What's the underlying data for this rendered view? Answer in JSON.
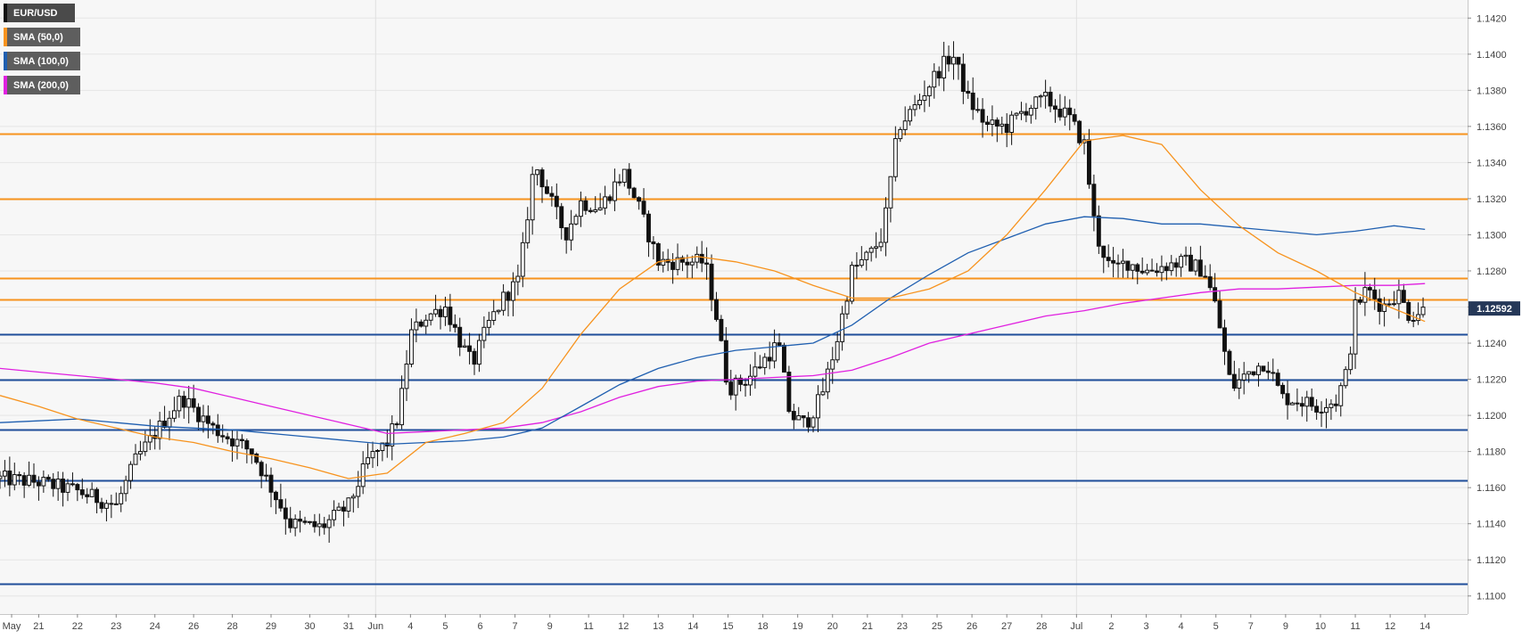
{
  "chart_data": {
    "type": "candlestick",
    "symbol": "EUR/USD",
    "legend": [
      {
        "label": "EUR/USD",
        "color": "#111111"
      },
      {
        "label": "SMA (50,0)",
        "color": "#f7931e"
      },
      {
        "label": "SMA (100,0)",
        "color": "#1f5fb0"
      },
      {
        "label": "SMA (200,0)",
        "color": "#e020e0"
      }
    ],
    "ylim": [
      1.109,
      1.143
    ],
    "y_ticks": [
      "1.1100",
      "1.1120",
      "1.1140",
      "1.1160",
      "1.1180",
      "1.1200",
      "1.1220",
      "1.1240",
      "1.1260",
      "1.1280",
      "1.1300",
      "1.1320",
      "1.1340",
      "1.1360",
      "1.1380",
      "1.1400",
      "1.1420"
    ],
    "x_ticks": [
      {
        "label": "May",
        "x": 0.3
      },
      {
        "label": "21",
        "x": 1.0
      },
      {
        "label": "22",
        "x": 2.0
      },
      {
        "label": "23",
        "x": 3.0
      },
      {
        "label": "24",
        "x": 4.0
      },
      {
        "label": "26",
        "x": 5.0
      },
      {
        "label": "28",
        "x": 6.0
      },
      {
        "label": "29",
        "x": 7.0
      },
      {
        "label": "30",
        "x": 8.0
      },
      {
        "label": "31",
        "x": 9.0
      },
      {
        "label": "Jun",
        "x": 9.7
      },
      {
        "label": "4",
        "x": 10.6
      },
      {
        "label": "5",
        "x": 11.5
      },
      {
        "label": "6",
        "x": 12.4
      },
      {
        "label": "7",
        "x": 13.3
      },
      {
        "label": "9",
        "x": 14.2
      },
      {
        "label": "11",
        "x": 15.2
      },
      {
        "label": "12",
        "x": 16.1
      },
      {
        "label": "13",
        "x": 17.0
      },
      {
        "label": "14",
        "x": 17.9
      },
      {
        "label": "15",
        "x": 18.8
      },
      {
        "label": "18",
        "x": 19.7
      },
      {
        "label": "19",
        "x": 20.6
      },
      {
        "label": "20",
        "x": 21.5
      },
      {
        "label": "21",
        "x": 22.4
      },
      {
        "label": "23",
        "x": 23.3
      },
      {
        "label": "25",
        "x": 24.2
      },
      {
        "label": "26",
        "x": 25.1
      },
      {
        "label": "27",
        "x": 26.0
      },
      {
        "label": "28",
        "x": 26.9
      },
      {
        "label": "Jul",
        "x": 27.8
      },
      {
        "label": "2",
        "x": 28.7
      },
      {
        "label": "3",
        "x": 29.6
      },
      {
        "label": "4",
        "x": 30.5
      },
      {
        "label": "5",
        "x": 31.4
      },
      {
        "label": "7",
        "x": 32.3
      },
      {
        "label": "9",
        "x": 33.2
      },
      {
        "label": "10",
        "x": 34.1
      },
      {
        "label": "11",
        "x": 35.0
      },
      {
        "label": "12",
        "x": 35.9
      },
      {
        "label": "14",
        "x": 36.8
      }
    ],
    "x_range": [
      0,
      37.9
    ],
    "last_price": "1.12592",
    "h_levels": [
      {
        "y": 1.1356,
        "color": "#f7931e"
      },
      {
        "y": 1.132,
        "color": "#f7931e"
      },
      {
        "y": 1.1276,
        "color": "#f7931e"
      },
      {
        "y": 1.1264,
        "color": "#f7931e"
      },
      {
        "y": 1.1245,
        "color": "#1f4e9a"
      },
      {
        "y": 1.122,
        "color": "#1f4e9a"
      },
      {
        "y": 1.1192,
        "color": "#1f4e9a"
      },
      {
        "y": 1.1164,
        "color": "#1f4e9a"
      },
      {
        "y": 1.1107,
        "color": "#1f4e9a"
      }
    ],
    "anchors": [
      [
        0.0,
        1.1165
      ],
      [
        1.0,
        1.1163
      ],
      [
        2.0,
        1.1158
      ],
      [
        3.0,
        1.115
      ],
      [
        3.5,
        1.1175
      ],
      [
        4.0,
        1.119
      ],
      [
        4.7,
        1.121
      ],
      [
        5.5,
        1.1193
      ],
      [
        6.5,
        1.118
      ],
      [
        7.0,
        1.116
      ],
      [
        7.5,
        1.114
      ],
      [
        8.3,
        1.1138
      ],
      [
        9.0,
        1.115
      ],
      [
        9.5,
        1.1175
      ],
      [
        10.0,
        1.1185
      ],
      [
        10.3,
        1.12
      ],
      [
        10.6,
        1.1245
      ],
      [
        11.0,
        1.1255
      ],
      [
        11.5,
        1.126
      ],
      [
        11.9,
        1.124
      ],
      [
        12.2,
        1.1228
      ],
      [
        12.6,
        1.125
      ],
      [
        13.0,
        1.1265
      ],
      [
        13.4,
        1.1275
      ],
      [
        13.8,
        1.134
      ],
      [
        14.2,
        1.132
      ],
      [
        14.6,
        1.13
      ],
      [
        15.0,
        1.1318
      ],
      [
        15.5,
        1.1315
      ],
      [
        16.1,
        1.1335
      ],
      [
        16.5,
        1.1315
      ],
      [
        17.0,
        1.1285
      ],
      [
        17.6,
        1.1285
      ],
      [
        18.2,
        1.1285
      ],
      [
        18.5,
        1.1255
      ],
      [
        18.8,
        1.1215
      ],
      [
        19.3,
        1.122
      ],
      [
        19.7,
        1.123
      ],
      [
        20.1,
        1.124
      ],
      [
        20.4,
        1.12
      ],
      [
        20.8,
        1.1195
      ],
      [
        21.2,
        1.121
      ],
      [
        21.6,
        1.124
      ],
      [
        22.0,
        1.128
      ],
      [
        22.5,
        1.129
      ],
      [
        22.8,
        1.13
      ],
      [
        23.2,
        1.136
      ],
      [
        23.6,
        1.137
      ],
      [
        24.2,
        1.139
      ],
      [
        24.6,
        1.14
      ],
      [
        25.0,
        1.1375
      ],
      [
        25.5,
        1.136
      ],
      [
        26.0,
        1.136
      ],
      [
        26.5,
        1.137
      ],
      [
        27.0,
        1.1375
      ],
      [
        27.6,
        1.1365
      ],
      [
        28.0,
        1.135
      ],
      [
        28.3,
        1.13
      ],
      [
        28.7,
        1.128
      ],
      [
        29.1,
        1.1285
      ],
      [
        29.6,
        1.128
      ],
      [
        30.1,
        1.1283
      ],
      [
        30.6,
        1.1285
      ],
      [
        31.1,
        1.128
      ],
      [
        31.4,
        1.126
      ],
      [
        31.8,
        1.1215
      ],
      [
        32.3,
        1.1225
      ],
      [
        32.7,
        1.123
      ],
      [
        33.1,
        1.121
      ],
      [
        33.6,
        1.1208
      ],
      [
        34.0,
        1.1205
      ],
      [
        34.5,
        1.1208
      ],
      [
        34.8,
        1.1225
      ],
      [
        35.0,
        1.126
      ],
      [
        35.3,
        1.127
      ],
      [
        35.7,
        1.126
      ],
      [
        36.1,
        1.1268
      ],
      [
        36.4,
        1.1255
      ],
      [
        36.8,
        1.1259
      ]
    ],
    "sma50": [
      [
        0.0,
        1.1211
      ],
      [
        1.0,
        1.1205
      ],
      [
        2.0,
        1.1198
      ],
      [
        3.0,
        1.1193
      ],
      [
        4.0,
        1.1188
      ],
      [
        5.0,
        1.1185
      ],
      [
        6.0,
        1.118
      ],
      [
        7.0,
        1.1176
      ],
      [
        8.0,
        1.1171
      ],
      [
        9.0,
        1.1165
      ],
      [
        10.0,
        1.1168
      ],
      [
        11.0,
        1.1185
      ],
      [
        12.0,
        1.119
      ],
      [
        13.0,
        1.1196
      ],
      [
        14.0,
        1.1215
      ],
      [
        15.0,
        1.1245
      ],
      [
        16.0,
        1.127
      ],
      [
        17.0,
        1.1285
      ],
      [
        18.0,
        1.1288
      ],
      [
        19.0,
        1.1285
      ],
      [
        20.0,
        1.128
      ],
      [
        21.0,
        1.1272
      ],
      [
        22.0,
        1.1265
      ],
      [
        23.0,
        1.1265
      ],
      [
        24.0,
        1.127
      ],
      [
        25.0,
        1.128
      ],
      [
        26.0,
        1.13
      ],
      [
        27.0,
        1.1325
      ],
      [
        28.0,
        1.1352
      ],
      [
        29.0,
        1.1355
      ],
      [
        30.0,
        1.135
      ],
      [
        31.0,
        1.1325
      ],
      [
        32.0,
        1.1305
      ],
      [
        33.0,
        1.129
      ],
      [
        34.0,
        1.128
      ],
      [
        35.0,
        1.1268
      ],
      [
        36.0,
        1.1259
      ],
      [
        36.8,
        1.1252
      ]
    ],
    "sma100": [
      [
        0.0,
        1.1196
      ],
      [
        1.0,
        1.1197
      ],
      [
        2.0,
        1.1198
      ],
      [
        3.0,
        1.1196
      ],
      [
        4.0,
        1.1194
      ],
      [
        5.0,
        1.1193
      ],
      [
        6.0,
        1.1192
      ],
      [
        7.0,
        1.119
      ],
      [
        8.0,
        1.1188
      ],
      [
        9.0,
        1.1186
      ],
      [
        10.0,
        1.1184
      ],
      [
        11.0,
        1.1185
      ],
      [
        12.0,
        1.1186
      ],
      [
        13.0,
        1.1188
      ],
      [
        14.0,
        1.1193
      ],
      [
        15.0,
        1.1205
      ],
      [
        16.0,
        1.1217
      ],
      [
        17.0,
        1.1226
      ],
      [
        18.0,
        1.1232
      ],
      [
        19.0,
        1.1236
      ],
      [
        20.0,
        1.1238
      ],
      [
        21.0,
        1.124
      ],
      [
        22.0,
        1.125
      ],
      [
        23.0,
        1.1265
      ],
      [
        24.0,
        1.1278
      ],
      [
        25.0,
        1.129
      ],
      [
        26.0,
        1.1298
      ],
      [
        27.0,
        1.1306
      ],
      [
        28.0,
        1.131
      ],
      [
        29.0,
        1.1309
      ],
      [
        30.0,
        1.1306
      ],
      [
        31.0,
        1.1306
      ],
      [
        32.0,
        1.1304
      ],
      [
        33.0,
        1.1302
      ],
      [
        34.0,
        1.13
      ],
      [
        35.0,
        1.1302
      ],
      [
        36.0,
        1.1305
      ],
      [
        36.8,
        1.1303
      ]
    ],
    "sma200": [
      [
        0.0,
        1.1226
      ],
      [
        1.0,
        1.1224
      ],
      [
        2.0,
        1.1222
      ],
      [
        3.0,
        1.122
      ],
      [
        4.0,
        1.1218
      ],
      [
        5.0,
        1.1215
      ],
      [
        6.0,
        1.121
      ],
      [
        7.0,
        1.1205
      ],
      [
        8.0,
        1.12
      ],
      [
        9.0,
        1.1195
      ],
      [
        10.0,
        1.119
      ],
      [
        11.0,
        1.1191
      ],
      [
        12.0,
        1.1192
      ],
      [
        13.0,
        1.1193
      ],
      [
        14.0,
        1.1196
      ],
      [
        15.0,
        1.1202
      ],
      [
        16.0,
        1.121
      ],
      [
        17.0,
        1.1216
      ],
      [
        18.0,
        1.1219
      ],
      [
        19.0,
        1.122
      ],
      [
        20.0,
        1.1221
      ],
      [
        21.0,
        1.1222
      ],
      [
        22.0,
        1.1225
      ],
      [
        23.0,
        1.1232
      ],
      [
        24.0,
        1.124
      ],
      [
        25.0,
        1.1245
      ],
      [
        26.0,
        1.125
      ],
      [
        27.0,
        1.1255
      ],
      [
        28.0,
        1.1258
      ],
      [
        29.0,
        1.1262
      ],
      [
        30.0,
        1.1265
      ],
      [
        31.0,
        1.1268
      ],
      [
        32.0,
        1.127
      ],
      [
        33.0,
        1.127
      ],
      [
        34.0,
        1.1271
      ],
      [
        35.0,
        1.1272
      ],
      [
        36.0,
        1.1272
      ],
      [
        36.8,
        1.1273
      ]
    ]
  }
}
